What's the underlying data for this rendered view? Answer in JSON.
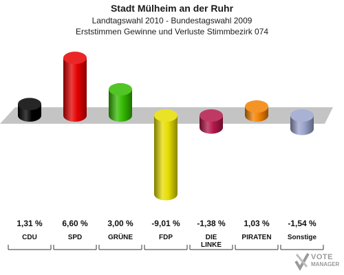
{
  "header": {
    "title": "Stadt Mülheim an der Ruhr",
    "subtitle1": "Landtagswahl 2010 - Bundestagswahl 2009",
    "subtitle2": "Erststimmen Gewinne und Verluste Stimmbezirk 074"
  },
  "chart_data": {
    "type": "bar",
    "categories": [
      "CDU",
      "SPD",
      "GRÜNE",
      "FDP",
      "DIE LINKE",
      "PIRATEN",
      "Sonstige"
    ],
    "category_lines": [
      [
        "CDU"
      ],
      [
        "SPD"
      ],
      [
        "GRÜNE"
      ],
      [
        "FDP"
      ],
      [
        "DIE",
        "LINKE"
      ],
      [
        "PIRATEN"
      ],
      [
        "Sonstige"
      ]
    ],
    "values": [
      1.31,
      6.6,
      3.0,
      -9.01,
      -1.38,
      1.03,
      -1.54
    ],
    "value_labels": [
      "1,31 %",
      "6,60 %",
      "3,00 %",
      "-9,01 %",
      "-1,38 %",
      "1,03 %",
      "-1,54 %"
    ],
    "colors": [
      "#000000",
      "#e60000",
      "#33bb00",
      "#e6dd00",
      "#b3174a",
      "#f28100",
      "#9aa3cc"
    ],
    "ylim": [
      -9.01,
      6.6
    ]
  },
  "logo": {
    "line1": "VOTE",
    "line2": "MANAGER"
  }
}
